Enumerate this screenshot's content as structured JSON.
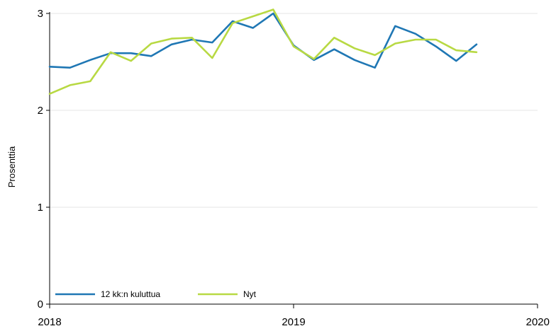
{
  "chart_data": {
    "type": "line",
    "ylabel": "Prosenttia",
    "xlabel": "",
    "xlim": [
      2018.0,
      2020.0
    ],
    "ylim": [
      0,
      3
    ],
    "x_ticks": [
      {
        "value": 2018,
        "label": "2018"
      },
      {
        "value": 2019,
        "label": "2019"
      },
      {
        "value": 2020,
        "label": "2020"
      }
    ],
    "y_ticks": [
      {
        "value": 0,
        "label": "0"
      },
      {
        "value": 1,
        "label": "1"
      },
      {
        "value": 2,
        "label": "2"
      },
      {
        "value": 3,
        "label": "3"
      }
    ],
    "grid": "horizontal",
    "legend_position": "bottom-left",
    "x": [
      "2018-01",
      "2018-02",
      "2018-03",
      "2018-04",
      "2018-05",
      "2018-06",
      "2018-07",
      "2018-08",
      "2018-09",
      "2018-10",
      "2018-11",
      "2018-12",
      "2019-01",
      "2019-02",
      "2019-03",
      "2019-04",
      "2019-05",
      "2019-06",
      "2019-07",
      "2019-08",
      "2019-09",
      "2019-10"
    ],
    "series": [
      {
        "name": "12 kk:n kuluttua",
        "color": "#1f77b4",
        "values": [
          2.45,
          2.44,
          2.52,
          2.59,
          2.59,
          2.56,
          2.68,
          2.73,
          2.7,
          2.92,
          2.85,
          3.0,
          2.67,
          2.52,
          2.63,
          2.52,
          2.44,
          2.87,
          2.79,
          2.66,
          2.51,
          2.68
        ]
      },
      {
        "name": "Nyt",
        "color": "#b8d943",
        "values": [
          2.17,
          2.26,
          2.3,
          2.6,
          2.51,
          2.69,
          2.74,
          2.75,
          2.54,
          2.9,
          2.97,
          3.04,
          2.66,
          2.53,
          2.75,
          2.64,
          2.57,
          2.69,
          2.73,
          2.73,
          2.62,
          2.6
        ]
      }
    ]
  }
}
